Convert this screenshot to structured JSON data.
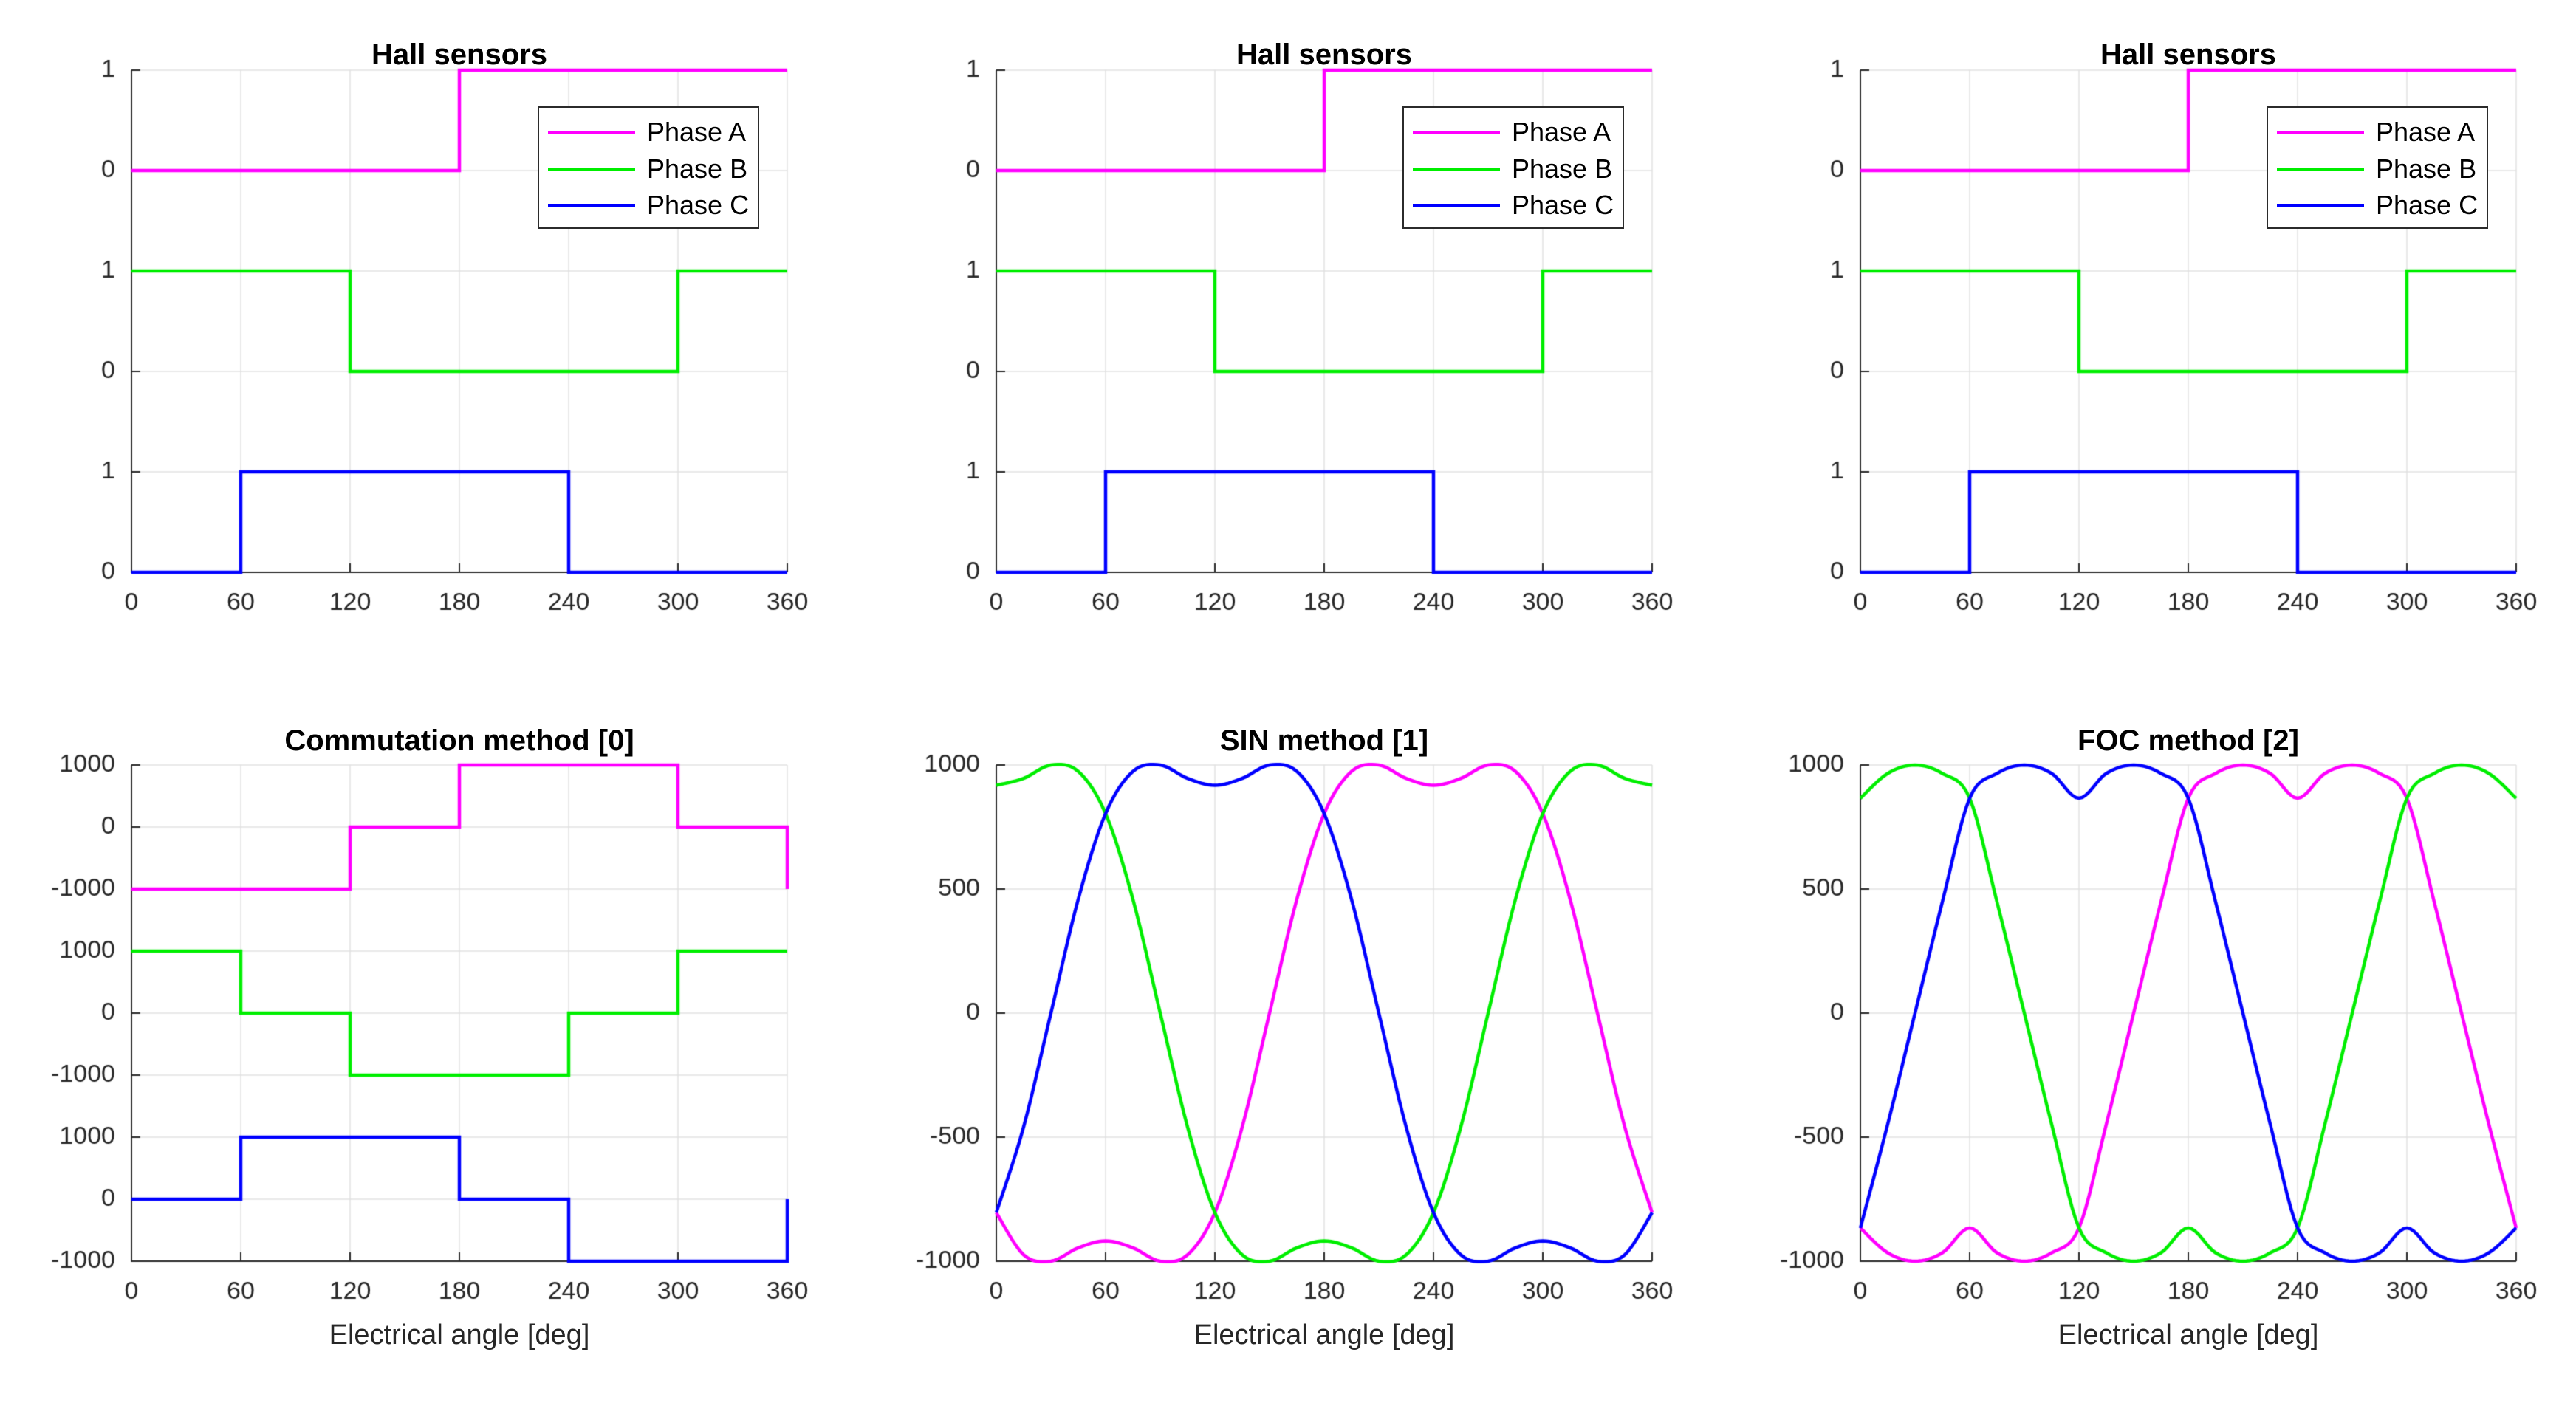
{
  "figure": {
    "background": "#FFFFFF",
    "grid_color": "#E2E2E2",
    "axis_color": "#2B2B2B",
    "tick_label_color": "#262626",
    "phase_colors": {
      "phase_a": "#FF00FF",
      "phase_b": "#00EE00",
      "phase_c": "#0000FF"
    }
  },
  "chart_data": [
    {
      "type": "line",
      "title": "Hall sensors",
      "xlabel": null,
      "xlim": [
        0,
        360
      ],
      "x_ticks": [
        0,
        60,
        120,
        180,
        240,
        300,
        360
      ],
      "grid": true,
      "legend_position": "upper-right",
      "layout": "three-stacked-bands",
      "y_tick_labels": [
        "1",
        "0",
        "1",
        "0",
        "1",
        "0"
      ],
      "series": [
        {
          "name": "Phase A",
          "color": "#FF00FF",
          "mode": "steps",
          "offset": 4,
          "scale": 1,
          "points": [
            [
              0,
              0
            ],
            [
              180,
              0
            ],
            [
              180,
              1
            ],
            [
              360,
              1
            ]
          ]
        },
        {
          "name": "Phase B",
          "color": "#00EE00",
          "mode": "steps",
          "offset": 2,
          "scale": 1,
          "points": [
            [
              0,
              1
            ],
            [
              120,
              1
            ],
            [
              120,
              0
            ],
            [
              300,
              0
            ],
            [
              300,
              1
            ],
            [
              360,
              1
            ]
          ]
        },
        {
          "name": "Phase C",
          "color": "#0000FF",
          "mode": "steps",
          "offset": 0,
          "scale": 1,
          "points": [
            [
              0,
              0
            ],
            [
              60,
              0
            ],
            [
              60,
              1
            ],
            [
              240,
              1
            ],
            [
              240,
              0
            ],
            [
              360,
              0
            ]
          ]
        }
      ]
    },
    {
      "type": "line",
      "title": "Hall sensors",
      "xlabel": null,
      "xlim": [
        0,
        360
      ],
      "x_ticks": [
        0,
        60,
        120,
        180,
        240,
        300,
        360
      ],
      "grid": true,
      "legend_position": "upper-right",
      "layout": "three-stacked-bands",
      "y_tick_labels": [
        "1",
        "0",
        "1",
        "0",
        "1",
        "0"
      ],
      "series": [
        {
          "name": "Phase A",
          "color": "#FF00FF",
          "mode": "steps",
          "offset": 4,
          "scale": 1,
          "points": [
            [
              0,
              0
            ],
            [
              180,
              0
            ],
            [
              180,
              1
            ],
            [
              360,
              1
            ]
          ]
        },
        {
          "name": "Phase B",
          "color": "#00EE00",
          "mode": "steps",
          "offset": 2,
          "scale": 1,
          "points": [
            [
              0,
              1
            ],
            [
              120,
              1
            ],
            [
              120,
              0
            ],
            [
              300,
              0
            ],
            [
              300,
              1
            ],
            [
              360,
              1
            ]
          ]
        },
        {
          "name": "Phase C",
          "color": "#0000FF",
          "mode": "steps",
          "offset": 0,
          "scale": 1,
          "points": [
            [
              0,
              0
            ],
            [
              60,
              0
            ],
            [
              60,
              1
            ],
            [
              240,
              1
            ],
            [
              240,
              0
            ],
            [
              360,
              0
            ]
          ]
        }
      ]
    },
    {
      "type": "line",
      "title": "Hall sensors",
      "xlabel": null,
      "xlim": [
        0,
        360
      ],
      "x_ticks": [
        0,
        60,
        120,
        180,
        240,
        300,
        360
      ],
      "grid": true,
      "legend_position": "upper-right",
      "layout": "three-stacked-bands",
      "y_tick_labels": [
        "1",
        "0",
        "1",
        "0",
        "1",
        "0"
      ],
      "series": [
        {
          "name": "Phase A",
          "color": "#FF00FF",
          "mode": "steps",
          "offset": 4,
          "scale": 1,
          "points": [
            [
              0,
              0
            ],
            [
              180,
              0
            ],
            [
              180,
              1
            ],
            [
              360,
              1
            ]
          ]
        },
        {
          "name": "Phase B",
          "color": "#00EE00",
          "mode": "steps",
          "offset": 2,
          "scale": 1,
          "points": [
            [
              0,
              1
            ],
            [
              120,
              1
            ],
            [
              120,
              0
            ],
            [
              300,
              0
            ],
            [
              300,
              1
            ],
            [
              360,
              1
            ]
          ]
        },
        {
          "name": "Phase C",
          "color": "#0000FF",
          "mode": "steps",
          "offset": 0,
          "scale": 1,
          "points": [
            [
              0,
              0
            ],
            [
              60,
              0
            ],
            [
              60,
              1
            ],
            [
              240,
              1
            ],
            [
              240,
              0
            ],
            [
              360,
              0
            ]
          ]
        }
      ]
    },
    {
      "type": "line",
      "title": "Commutation method [0]",
      "xlabel": "Electrical angle [deg]",
      "xlim": [
        0,
        360
      ],
      "x_ticks": [
        0,
        60,
        120,
        180,
        240,
        300,
        360
      ],
      "grid": true,
      "legend_position": null,
      "layout": "three-stacked-bands",
      "y_tick_labels": [
        "1000",
        "0",
        "-1000",
        "1000",
        "0",
        "-1000",
        "1000",
        "0",
        "-1000"
      ],
      "series": [
        {
          "name": "Phase A",
          "color": "#FF00FF",
          "mode": "steps",
          "offset": 7,
          "scale": 0.001,
          "points": [
            [
              0,
              -1000
            ],
            [
              120,
              -1000
            ],
            [
              120,
              0
            ],
            [
              180,
              0
            ],
            [
              180,
              1000
            ],
            [
              300,
              1000
            ],
            [
              300,
              0
            ],
            [
              360,
              0
            ],
            [
              360,
              -1000
            ]
          ]
        },
        {
          "name": "Phase B",
          "color": "#00EE00",
          "mode": "steps",
          "offset": 4,
          "scale": 0.001,
          "points": [
            [
              0,
              1000
            ],
            [
              60,
              1000
            ],
            [
              60,
              0
            ],
            [
              120,
              0
            ],
            [
              120,
              -1000
            ],
            [
              240,
              -1000
            ],
            [
              240,
              0
            ],
            [
              300,
              0
            ],
            [
              300,
              1000
            ],
            [
              360,
              1000
            ]
          ]
        },
        {
          "name": "Phase C",
          "color": "#0000FF",
          "mode": "steps",
          "offset": 1,
          "scale": 0.001,
          "points": [
            [
              0,
              0
            ],
            [
              60,
              0
            ],
            [
              60,
              1000
            ],
            [
              180,
              1000
            ],
            [
              180,
              0
            ],
            [
              240,
              0
            ],
            [
              240,
              -1000
            ],
            [
              360,
              -1000
            ],
            [
              360,
              0
            ]
          ]
        }
      ]
    },
    {
      "type": "line",
      "title": "SIN method [1]",
      "xlabel": "Electrical angle [deg]",
      "xlim": [
        0,
        360
      ],
      "x_ticks": [
        0,
        60,
        120,
        180,
        240,
        300,
        360
      ],
      "ylim": [
        -1000,
        1000
      ],
      "grid": true,
      "legend_position": null,
      "layout": "single",
      "y_tick_labels": [
        "1000",
        "500",
        "0",
        "-500",
        "-1000"
      ],
      "series": [
        {
          "name": "Phase A",
          "color": "#FF00FF",
          "mode": "smooth",
          "offset": 2,
          "scale": 0.002,
          "x_step": 15,
          "values": [
            -804,
            -974,
            -1000,
            -946,
            -918,
            -946,
            -1000,
            -974,
            -804,
            -459,
            0,
            459,
            804,
            974,
            1000,
            946,
            918,
            946,
            1000,
            974,
            804,
            459,
            0,
            -459,
            -804
          ]
        },
        {
          "name": "Phase B",
          "color": "#00EE00",
          "mode": "smooth",
          "offset": 2,
          "scale": 0.002,
          "x_step": 15,
          "values": [
            918,
            946,
            1000,
            974,
            804,
            459,
            0,
            -459,
            -804,
            -974,
            -1000,
            -946,
            -918,
            -946,
            -1000,
            -974,
            -804,
            -459,
            0,
            459,
            804,
            974,
            1000,
            946,
            918
          ]
        },
        {
          "name": "Phase C",
          "color": "#0000FF",
          "mode": "smooth",
          "offset": 2,
          "scale": 0.002,
          "x_step": 15,
          "values": [
            -804,
            -459,
            0,
            459,
            804,
            974,
            1000,
            946,
            918,
            946,
            1000,
            974,
            804,
            459,
            0,
            -459,
            -804,
            -974,
            -1000,
            -946,
            -918,
            -946,
            -1000,
            -974,
            -804
          ]
        }
      ]
    },
    {
      "type": "line",
      "title": "FOC method [2]",
      "xlabel": "Electrical angle [deg]",
      "xlim": [
        0,
        360
      ],
      "x_ticks": [
        0,
        60,
        120,
        180,
        240,
        300,
        360
      ],
      "ylim": [
        -1000,
        1000
      ],
      "grid": true,
      "legend_position": null,
      "layout": "single",
      "y_tick_labels": [
        "1000",
        "500",
        "0",
        "-500",
        "-1000"
      ],
      "series": [
        {
          "name": "Phase A",
          "color": "#FF00FF",
          "mode": "smooth",
          "offset": 2,
          "scale": 0.002,
          "x_step": 15,
          "values": [
            -866,
            -966,
            -1000,
            -966,
            -866,
            -966,
            -1000,
            -966,
            -866,
            -448,
            0,
            448,
            866,
            966,
            1000,
            966,
            866,
            966,
            1000,
            966,
            866,
            448,
            0,
            -448,
            -866
          ]
        },
        {
          "name": "Phase B",
          "color": "#00EE00",
          "mode": "smooth",
          "offset": 2,
          "scale": 0.002,
          "x_step": 15,
          "values": [
            866,
            966,
            1000,
            966,
            866,
            448,
            0,
            -448,
            -866,
            -966,
            -1000,
            -966,
            -866,
            -966,
            -1000,
            -966,
            -866,
            -448,
            0,
            448,
            866,
            966,
            1000,
            966,
            866
          ]
        },
        {
          "name": "Phase C",
          "color": "#0000FF",
          "mode": "smooth",
          "offset": 2,
          "scale": 0.002,
          "x_step": 15,
          "values": [
            -866,
            -448,
            0,
            448,
            866,
            966,
            1000,
            966,
            866,
            966,
            1000,
            966,
            866,
            448,
            0,
            -448,
            -866,
            -966,
            -1000,
            -966,
            -866,
            -966,
            -1000,
            -966,
            -866
          ]
        }
      ]
    }
  ]
}
